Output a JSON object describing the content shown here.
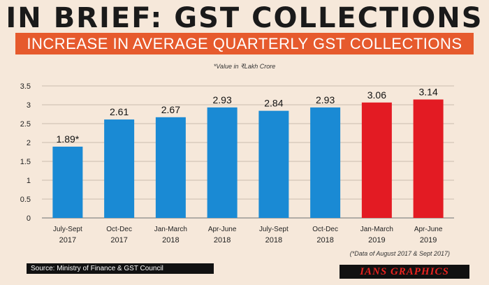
{
  "header": {
    "title": "IN BRIEF: GST COLLECTIONS",
    "banner": "INCREASE IN AVERAGE QUARTERLY GST COLLECTIONS"
  },
  "unit_note": "*Value in ₹Lakh Crore",
  "footnote": "(*Data of August 2017 & Sept 2017)",
  "source": "Source: Ministry of Finance & GST Council",
  "logo": "IANS GRAPHICS",
  "colors": {
    "blue": "#1a8ad4",
    "red": "#e31b23"
  },
  "chart_data": {
    "type": "bar",
    "title": "INCREASE IN AVERAGE QUARTERLY GST COLLECTIONS",
    "ylabel": "Value in ₹Lakh Crore",
    "ylim": [
      0,
      3.5
    ],
    "yticks": [
      "0",
      "0.5",
      "1",
      "1.5",
      "2",
      "2.5",
      "3",
      "3.5"
    ],
    "grid": true,
    "categories": [
      [
        "July-Sept",
        "2017"
      ],
      [
        "Oct-Dec",
        "2017"
      ],
      [
        "Jan-March",
        "2018"
      ],
      [
        "Apr-June",
        "2018"
      ],
      [
        "July-Sept",
        "2018"
      ],
      [
        "Oct-Dec",
        "2018"
      ],
      [
        "Jan-March",
        "2019"
      ],
      [
        "Apr-June",
        "2019"
      ]
    ],
    "values": [
      1.89,
      2.61,
      2.67,
      2.93,
      2.84,
      2.93,
      3.06,
      3.14
    ],
    "labels": [
      "1.89*",
      "2.61",
      "2.67",
      "2.93",
      "2.84",
      "2.93",
      "3.06",
      "3.14"
    ],
    "bar_colors": [
      "blue",
      "blue",
      "blue",
      "blue",
      "blue",
      "blue",
      "red",
      "red"
    ]
  }
}
